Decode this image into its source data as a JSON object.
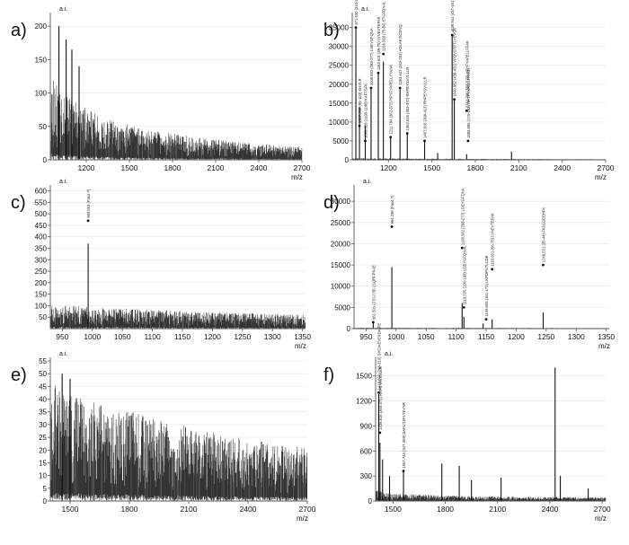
{
  "figure": {
    "panels": [
      {
        "letter": "a)",
        "ylabel": "a.i.",
        "xlabel": "m/z"
      },
      {
        "letter": "b)",
        "ylabel": "a.i.",
        "xlabel": "m/z"
      },
      {
        "letter": "c)",
        "ylabel": "a.i.",
        "xlabel": "m/z"
      },
      {
        "letter": "d)",
        "ylabel": "a.i.",
        "xlabel": "m/z"
      },
      {
        "letter": "e)",
        "ylabel": "a.i.",
        "xlabel": "m/z"
      },
      {
        "letter": "f)",
        "ylabel": "a.i.",
        "xlabel": "m/z"
      }
    ]
  },
  "colors": {
    "trace": "#333333",
    "axis": "#555555",
    "text": "#111111",
    "grid": "#e4e4e4"
  },
  "chart_data": [
    {
      "type": "line",
      "panel": "a)",
      "xlabel": "m/z",
      "ylabel": "a.i.",
      "xlim": [
        950,
        2700
      ],
      "ylim": [
        0,
        215
      ],
      "xticks": [
        1200,
        1500,
        1800,
        2100,
        2400,
        2700
      ],
      "xtick_labels": [
        "1200",
        "1500",
        "1800",
        "2100",
        "2400",
        "2700"
      ],
      "yticks": [
        0,
        50,
        100,
        150,
        200
      ],
      "ytick_labels": [
        "0",
        "50",
        "100",
        "150",
        "200"
      ],
      "grid": true,
      "noise_profile": [
        [
          950,
          115
        ],
        [
          1050,
          90
        ],
        [
          1200,
          70
        ],
        [
          1400,
          52
        ],
        [
          1600,
          42
        ],
        [
          1800,
          36
        ],
        [
          2000,
          30
        ],
        [
          2200,
          26
        ],
        [
          2400,
          22
        ],
        [
          2700,
          18
        ]
      ],
      "peaks": [
        [
          1010,
          200
        ],
        [
          1060,
          180
        ],
        [
          1100,
          165
        ],
        [
          1150,
          140
        ]
      ],
      "annotations": []
    },
    {
      "type": "line",
      "panel": "b)",
      "xlabel": "m/z",
      "ylabel": "a.i.",
      "xlim": [
        950,
        2700
      ],
      "ylim": [
        0,
        38000
      ],
      "xticks": [
        1200,
        1500,
        1800,
        2100,
        2400,
        2700
      ],
      "xtick_labels": [
        "1200",
        "1500",
        "1800",
        "2100",
        "2400",
        "2700"
      ],
      "yticks": [
        0,
        5000,
        10000,
        15000,
        20000,
        25000,
        30000,
        35000
      ],
      "ytick_labels": [
        "0",
        "5000",
        "10000",
        "15000",
        "20000",
        "25000",
        "30000",
        "35000"
      ],
      "grid": true,
      "noise_profile": [
        [
          950,
          400
        ],
        [
          1700,
          250
        ],
        [
          2700,
          150
        ]
      ],
      "peaks": [
        [
          975,
          35000
        ],
        [
          1000,
          14000
        ],
        [
          1040,
          9000
        ],
        [
          1080,
          19000
        ],
        [
          1130,
          23000
        ],
        [
          1165,
          26000
        ],
        [
          1215,
          6000
        ],
        [
          1280,
          19000
        ],
        [
          1330,
          7000
        ],
        [
          1450,
          5000
        ],
        [
          1540,
          1800
        ],
        [
          1640,
          33000
        ],
        [
          1655,
          16000
        ],
        [
          1740,
          1500
        ],
        [
          2050,
          2200
        ]
      ],
      "annotations": [
        {
          "x": 975,
          "y": 35000,
          "label": "971.530 (310-319)"
        },
        {
          "x": 1000,
          "y": 9000,
          "label": "1007.530 (95-103) KHYLR"
        },
        {
          "x": 1040,
          "y": 5000,
          "label": "1063.528 (1190-1198) KAFTSFK"
        },
        {
          "x": 1080,
          "y": 19000,
          "label": "1108.582 (268-277) LGEYGFQNA"
        },
        {
          "x": 1130,
          "y": 23000,
          "label": "1163.601 (66-75) LVNEVTEFAK"
        },
        {
          "x": 1165,
          "y": 28000,
          "label": "1166.568 (75-84) ETGFQNAL"
        },
        {
          "x": 1215,
          "y": 6000,
          "label": "1211.784 (362-372) HPYFYAPELLYYANK"
        },
        {
          "x": 1280,
          "y": 19000,
          "label": "1283.647 (243-253) ADLAKYICDNQ"
        },
        {
          "x": 1330,
          "y": 7000,
          "label": "1362.616 (363-372) RHPEYSVVLLLR"
        },
        {
          "x": 1450,
          "y": 5000,
          "label": "1467.816 (398-413) RHPEYSVVLLR"
        },
        {
          "x": 1640,
          "y": 33000,
          "label": "1639.941 (437-451) KVPQVSTPTLVEVSR"
        },
        {
          "x": 1655,
          "y": 16000,
          "label": "1649.962 (438-451) VPQVSTPTLVEVSR"
        },
        {
          "x": 1740,
          "y": 13000,
          "label": "1742.786 (558-570) HPYFYAPELLFFAK"
        },
        {
          "x": 1750,
          "y": 5000,
          "label": "1883.895 (170-183) HPYFYAPELLFFAKR"
        }
      ]
    },
    {
      "type": "line",
      "panel": "c)",
      "xlabel": "m/z",
      "ylabel": "a.i.",
      "xlim": [
        930,
        1355
      ],
      "ylim": [
        0,
        610
      ],
      "xticks": [
        950,
        1000,
        1050,
        1100,
        1150,
        1200,
        1250,
        1300,
        1350
      ],
      "xtick_labels": [
        "950",
        "1000",
        "1050",
        "1100",
        "1150",
        "1200",
        "1250",
        "1300",
        "1350"
      ],
      "yticks": [
        50,
        100,
        150,
        200,
        250,
        300,
        350,
        400,
        450,
        500,
        550,
        600
      ],
      "ytick_labels": [
        "50",
        "100",
        "150",
        "200",
        "250",
        "300",
        "350",
        "400",
        "450",
        "500",
        "550",
        "600"
      ],
      "grid": true,
      "noise_profile": [
        [
          930,
          95
        ],
        [
          1000,
          85
        ],
        [
          1100,
          75
        ],
        [
          1200,
          65
        ],
        [
          1355,
          55
        ]
      ],
      "peaks": [
        [
          993,
          370
        ]
      ],
      "annotations": [
        {
          "x": 993,
          "y": 470,
          "label": "993.563 (Fas4-?)"
        }
      ]
    },
    {
      "type": "line",
      "panel": "d)",
      "xlabel": "m/z",
      "ylabel": "a.i.",
      "xlim": [
        930,
        1355
      ],
      "ylim": [
        0,
        33000
      ],
      "xticks": [
        950,
        1000,
        1050,
        1100,
        1150,
        1200,
        1250,
        1300,
        1350
      ],
      "xtick_labels": [
        "950",
        "1000",
        "1050",
        "1100",
        "1150",
        "1200",
        "1250",
        "1300",
        "1350"
      ],
      "yticks": [
        0,
        5000,
        10000,
        15000,
        20000,
        25000,
        30000
      ],
      "ytick_labels": [
        "0",
        "5000",
        "10000",
        "15000",
        "20000",
        "25000",
        "30000"
      ],
      "grid": true,
      "noise_profile": [
        [
          930,
          200
        ],
        [
          1355,
          120
        ]
      ],
      "peaks": [
        [
          962,
          1500
        ],
        [
          993,
          14500
        ],
        [
          1110,
          6000
        ],
        [
          1113,
          2800
        ],
        [
          1145,
          1200
        ],
        [
          1160,
          2200
        ],
        [
          1245,
          3800
        ]
      ],
      "annotations": [
        {
          "x": 962,
          "y": 1500,
          "label": "961.501 (270-278) LSQRFPKAE"
        },
        {
          "x": 993,
          "y": 24000,
          "label": "994.238 (Fas4-?)"
        },
        {
          "x": 1110,
          "y": 19000,
          "label": "1108.582 (268-277) LGEYGFQNA"
        },
        {
          "x": 1113,
          "y": 5000,
          "label": "1115.520 (190-198) LGEYGFQNAL"
        },
        {
          "x": 1160,
          "y": 14000,
          "label": "1163.601 (66-75) LVNEVTEFAK"
        },
        {
          "x": 1150,
          "y": 2200,
          "label": "1149.605 (161-171) LKPDPNTLCDE"
        },
        {
          "x": 1245,
          "y": 15000,
          "label": "1249.621 (35-44) FKDLGEEHFK"
        }
      ]
    },
    {
      "type": "line",
      "panel": "e)",
      "xlabel": "m/z",
      "ylabel": "a.i.",
      "xlim": [
        1400,
        2700
      ],
      "ylim": [
        0,
        55
      ],
      "xticks": [
        1500,
        1800,
        2100,
        2400,
        2700
      ],
      "xtick_labels": [
        "1500",
        "1800",
        "2100",
        "2400",
        "2700"
      ],
      "yticks": [
        0,
        5,
        10,
        15,
        20,
        25,
        30,
        35,
        40,
        45,
        50,
        55
      ],
      "ytick_labels": [
        "0",
        "5",
        "10",
        "15",
        "20",
        "25",
        "30",
        "35",
        "40",
        "45",
        "50",
        "55"
      ],
      "grid": true,
      "noise_profile": [
        [
          1400,
          42
        ],
        [
          1600,
          36
        ],
        [
          1800,
          32
        ],
        [
          2000,
          28
        ],
        [
          2200,
          25
        ],
        [
          2400,
          22
        ],
        [
          2700,
          19
        ]
      ],
      "peaks": [
        [
          1460,
          50
        ],
        [
          1500,
          48
        ]
      ],
      "annotations": []
    },
    {
      "type": "line",
      "panel": "f)",
      "xlabel": "m/z",
      "ylabel": "a.i.",
      "xlim": [
        1400,
        2720
      ],
      "ylim": [
        0,
        1680
      ],
      "xticks": [
        1500,
        1800,
        2100,
        2400,
        2700
      ],
      "xtick_labels": [
        "1500",
        "1800",
        "2100",
        "2400",
        "2700"
      ],
      "yticks": [
        0,
        300,
        600,
        900,
        1200,
        1500
      ],
      "ytick_labels": [
        "0",
        "300",
        "600",
        "900",
        "1200",
        "1500"
      ],
      "grid": true,
      "noise_profile": [
        [
          1400,
          120
        ],
        [
          1500,
          80
        ],
        [
          2000,
          50
        ],
        [
          2720,
          40
        ]
      ],
      "peaks": [
        [
          1418,
          1280
        ],
        [
          1425,
          700
        ],
        [
          1440,
          500
        ],
        [
          1480,
          300
        ],
        [
          1560,
          350
        ],
        [
          1780,
          450
        ],
        [
          1880,
          420
        ],
        [
          1950,
          250
        ],
        [
          2120,
          280
        ],
        [
          2430,
          1600
        ],
        [
          2460,
          300
        ],
        [
          2620,
          150
        ]
      ],
      "annotations": [
        {
          "x": 1418,
          "y": 1300,
          "label": "1418.690 (298-310) SHCIAEVEKDAIPE"
        },
        {
          "x": 1425,
          "y": 820,
          "label": "1439.816 (360-371) RHPEYAVSVLLR"
        },
        {
          "x": 1560,
          "y": 360,
          "label": "1567.743 (347-359) DAFLGSFLYEYSR"
        }
      ]
    }
  ]
}
